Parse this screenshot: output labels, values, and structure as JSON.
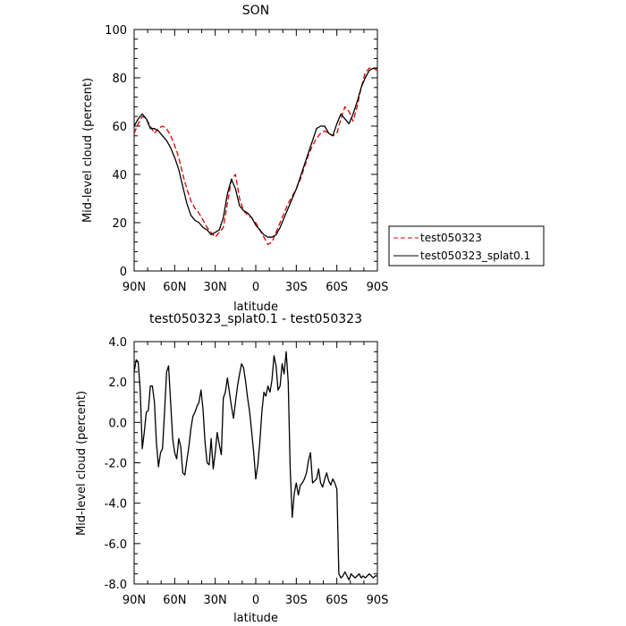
{
  "chart_data": [
    {
      "type": "line",
      "title": "SON",
      "xlabel": "latitude",
      "ylabel": "Mid-level cloud (percent)",
      "xlim": [
        -90,
        90
      ],
      "ylim": [
        0,
        100
      ],
      "x_ticks": [
        "90N",
        "60N",
        "30N",
        "0",
        "30S",
        "60S",
        "90S"
      ],
      "y_ticks": [
        "0",
        "20",
        "40",
        "60",
        "80",
        "100"
      ],
      "legend": "right-outside",
      "series": [
        {
          "name": "test050323",
          "color": "#dd0000",
          "dash": "dashed",
          "x": [
            -90,
            -87,
            -84,
            -81,
            -78,
            -75,
            -72,
            -69,
            -66,
            -63,
            -60,
            -57,
            -54,
            -51,
            -48,
            -45,
            -42,
            -39,
            -36,
            -33,
            -30,
            -27,
            -24,
            -21,
            -18,
            -15,
            -12,
            -9,
            -6,
            -3,
            0,
            3,
            6,
            9,
            12,
            15,
            18,
            21,
            24,
            27,
            30,
            33,
            36,
            39,
            42,
            45,
            48,
            51,
            54,
            57,
            60,
            63,
            66,
            69,
            72,
            75,
            78,
            81,
            84,
            87,
            90
          ],
          "y": [
            57,
            61,
            64,
            63,
            60,
            57,
            59,
            60,
            59,
            56,
            52,
            47,
            40,
            34,
            29,
            26,
            24,
            21,
            18,
            16,
            14,
            16,
            18,
            28,
            38,
            40,
            30,
            25,
            23,
            22,
            20,
            17,
            14,
            11,
            12,
            16,
            20,
            24,
            28,
            31,
            34,
            38,
            43,
            48,
            52,
            55,
            57,
            58,
            57,
            56,
            57,
            63,
            68,
            66,
            62,
            68,
            76,
            82,
            84,
            84,
            83
          ]
        },
        {
          "name": "test050323_splat0.1",
          "color": "#000000",
          "dash": "solid",
          "x": [
            -90,
            -87,
            -84,
            -81,
            -78,
            -75,
            -72,
            -69,
            -66,
            -63,
            -60,
            -57,
            -54,
            -51,
            -48,
            -45,
            -42,
            -39,
            -36,
            -33,
            -30,
            -27,
            -24,
            -21,
            -18,
            -15,
            -12,
            -9,
            -6,
            -3,
            0,
            3,
            6,
            9,
            12,
            15,
            18,
            21,
            24,
            27,
            30,
            33,
            36,
            39,
            42,
            45,
            48,
            51,
            54,
            57,
            60,
            63,
            66,
            69,
            72,
            75,
            78,
            81,
            84,
            87,
            90
          ],
          "y": [
            60,
            63,
            65,
            63,
            59,
            59,
            58,
            56,
            54,
            51,
            47,
            42,
            35,
            28,
            23,
            21,
            20,
            18,
            17,
            15,
            16,
            17,
            22,
            32,
            38,
            34,
            27,
            25,
            24,
            22,
            19,
            17,
            15,
            14,
            14,
            15,
            18,
            22,
            26,
            30,
            34,
            39,
            44,
            49,
            54,
            59,
            60,
            60,
            57,
            56,
            61,
            65,
            63,
            61,
            65,
            70,
            76,
            80,
            83,
            84,
            84
          ]
        }
      ]
    },
    {
      "type": "line",
      "title": "test050323_splat0.1 - test050323",
      "xlabel": "latitude",
      "ylabel": "Mid-level cloud (percent)",
      "xlim": [
        -90,
        90
      ],
      "ylim": [
        -8,
        4
      ],
      "x_ticks": [
        "90N",
        "60N",
        "30N",
        "0",
        "30S",
        "60S",
        "90S"
      ],
      "y_ticks": [
        "-8.0",
        "-6.0",
        "-4.0",
        "-2.0",
        "0.0",
        "2.0",
        "4.0"
      ],
      "series": [
        {
          "color": "#000000",
          "dash": "solid",
          "x": [
            -90,
            -88.5,
            -87,
            -85.5,
            -84,
            -82.5,
            -81,
            -79.5,
            -78,
            -76.5,
            -75,
            -73.5,
            -72,
            -70.5,
            -69,
            -67.5,
            -66,
            -64.5,
            -63,
            -61.5,
            -60,
            -58.5,
            -57,
            -55.5,
            -54,
            -52.5,
            -51,
            -49.5,
            -48,
            -46.5,
            -45,
            -43.5,
            -42,
            -40.5,
            -39,
            -37.5,
            -36,
            -34.5,
            -33,
            -31.5,
            -30,
            -28.5,
            -27,
            -25.5,
            -24,
            -22.5,
            -21,
            -19.5,
            -18,
            -16.5,
            -15,
            -13.5,
            -12,
            -10.5,
            -9,
            -7.5,
            -6,
            -4.5,
            -3,
            -1.5,
            0,
            1.5,
            3,
            4.5,
            6,
            7.5,
            9,
            10.5,
            12,
            13.5,
            15,
            16.5,
            18,
            19.5,
            21,
            22.5,
            24,
            25.5,
            27,
            28.5,
            30,
            31.5,
            33,
            34.5,
            36,
            37.5,
            39,
            40.5,
            42,
            43.5,
            45,
            46.5,
            48,
            49.5,
            51,
            52.5,
            54,
            55.5,
            57,
            58.5,
            60,
            61.5,
            63,
            64.5,
            66,
            67.5,
            69,
            70.5,
            72,
            73.5,
            75,
            76.5,
            78,
            79.5,
            81,
            82.5,
            84,
            85.5,
            87,
            88.5,
            90
          ],
          "y": [
            2.5,
            3.1,
            3.0,
            1.6,
            -1.3,
            -0.5,
            0.5,
            0.6,
            1.8,
            1.8,
            1.0,
            -1.0,
            -2.2,
            -1.5,
            -1.3,
            0.5,
            2.5,
            2.8,
            1.0,
            -0.8,
            -1.5,
            -1.8,
            -0.8,
            -1.2,
            -2.5,
            -2.6,
            -1.9,
            -1.2,
            -0.3,
            0.3,
            0.5,
            0.8,
            1.0,
            1.6,
            0.6,
            -1.0,
            -2.0,
            -2.1,
            -0.8,
            -2.3,
            -1.5,
            -0.5,
            -1.1,
            -1.6,
            1.2,
            1.5,
            2.2,
            1.5,
            0.8,
            0.2,
            1.0,
            1.8,
            2.4,
            2.9,
            2.7,
            2.0,
            1.2,
            0.5,
            -0.5,
            -1.5,
            -2.8,
            -2.1,
            -1.0,
            0.5,
            1.5,
            1.3,
            1.8,
            1.5,
            2.1,
            3.3,
            2.8,
            1.6,
            1.8,
            2.9,
            2.4,
            3.5,
            2.0,
            -2.3,
            -4.7,
            -3.5,
            -3.0,
            -3.6,
            -3.1,
            -3.0,
            -2.8,
            -2.5,
            -1.9,
            -1.5,
            -3.0,
            -2.9,
            -2.8,
            -2.3,
            -3.0,
            -3.2,
            -2.8,
            -2.5,
            -2.9,
            -3.1,
            -2.8,
            -3.0,
            -3.3,
            -7.5,
            -7.7,
            -7.6,
            -7.4,
            -7.6,
            -7.8,
            -7.5,
            -7.6,
            -7.7,
            -7.6,
            -7.5,
            -7.7,
            -7.6,
            -7.7,
            -7.6,
            -7.5,
            -7.6,
            -7.7,
            -7.6,
            -7.6
          ]
        }
      ]
    }
  ]
}
